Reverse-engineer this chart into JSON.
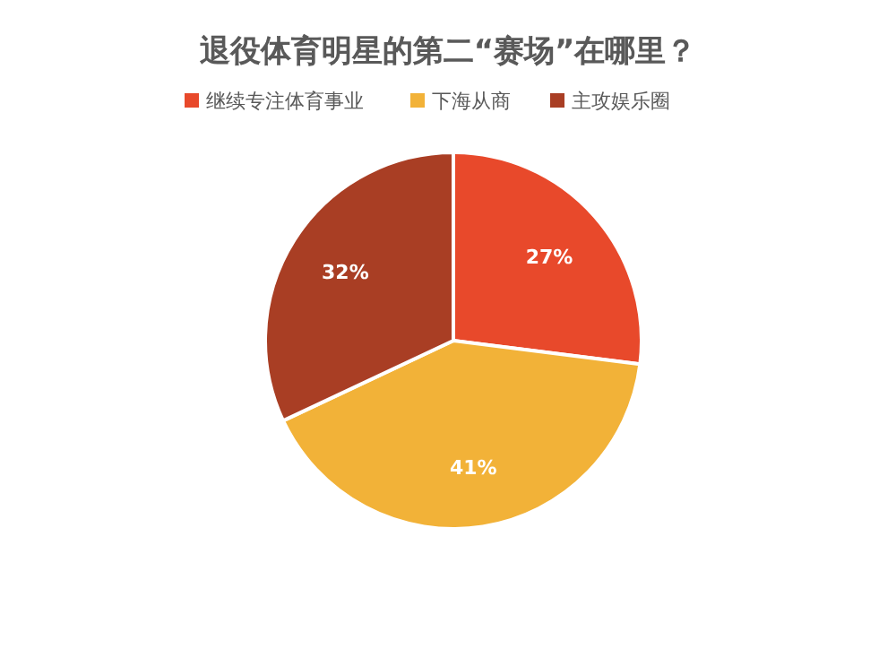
{
  "chart_data": {
    "type": "pie",
    "title": "退役体育明星的第二“赛场”在哪里？",
    "categories": [
      "继续专注体育事业",
      "下海从商",
      "主攻娱乐圈"
    ],
    "values": [
      27,
      41,
      32
    ],
    "value_labels": [
      "27%",
      "41%",
      "32%"
    ],
    "colors": [
      "#e8492b",
      "#f2b238",
      "#a93e24"
    ],
    "legend": "top"
  }
}
